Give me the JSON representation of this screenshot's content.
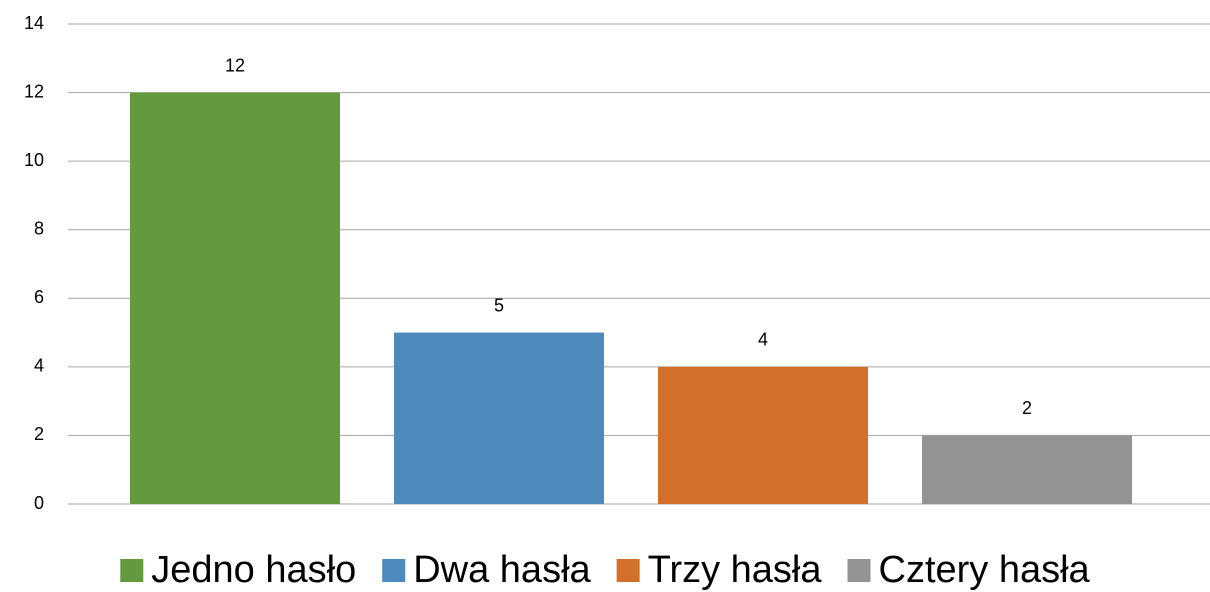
{
  "chart_data": {
    "type": "bar",
    "categories": [
      null
    ],
    "series": [
      {
        "name": "Jedno hasło",
        "color": "#649a3e",
        "values": [
          12
        ]
      },
      {
        "name": "Dwa hasła",
        "color": "#4f8abe",
        "values": [
          5
        ]
      },
      {
        "name": "Trzy hasła",
        "color": "#d26f2b",
        "values": [
          4
        ]
      },
      {
        "name": "Cztery hasła",
        "color": "#939393",
        "values": [
          2
        ]
      }
    ],
    "ylim": [
      0,
      14
    ],
    "yticks": [
      0,
      2,
      4,
      6,
      8,
      10,
      12,
      14
    ],
    "grid": true,
    "legend": "bottom"
  }
}
